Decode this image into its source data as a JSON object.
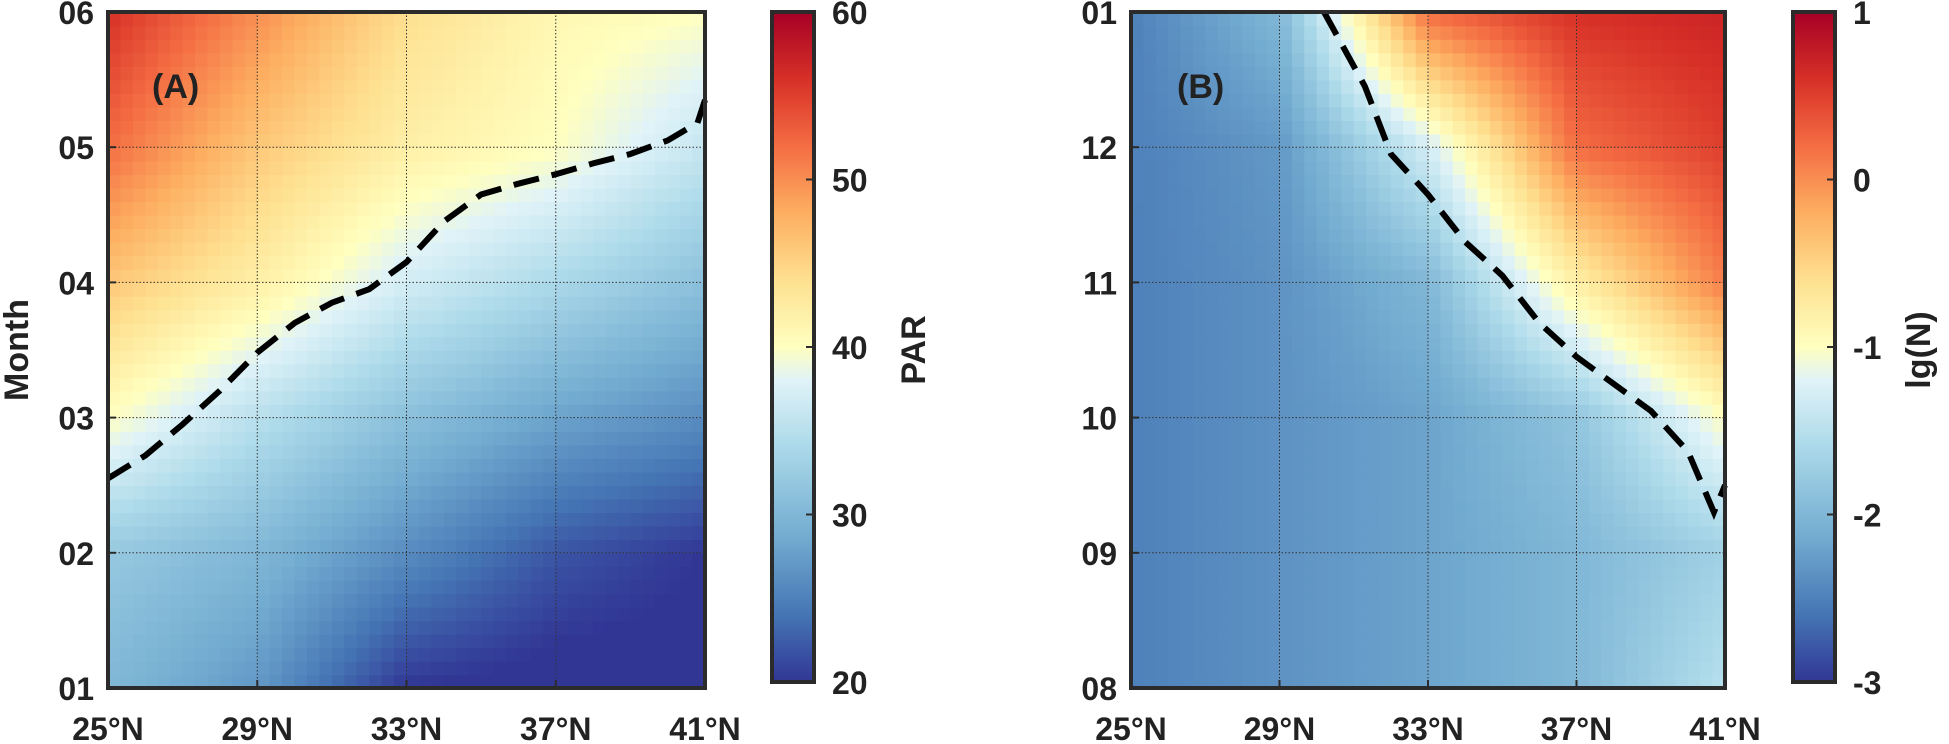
{
  "chart_data": [
    {
      "type": "heatmap",
      "panel_label": "(A)",
      "x_ticks": [
        "25°N",
        "29°N",
        "33°N",
        "37°N",
        "41°N"
      ],
      "y_ticks": [
        "01",
        "02",
        "03",
        "04",
        "05",
        "06"
      ],
      "ylabel": "Month",
      "xlim": [
        25,
        41
      ],
      "ylim": [
        0,
        5
      ],
      "grid": true,
      "colorbar": {
        "label": "PAR",
        "ticks": [
          "20",
          "30",
          "40",
          "50",
          "60"
        ],
        "range": [
          20,
          60
        ],
        "colormap": "red-yellow-blue"
      },
      "field_samples": {
        "x": [
          25,
          29,
          33,
          37,
          41
        ],
        "y": [
          0,
          1,
          2,
          3,
          4,
          5
        ],
        "z": [
          [
            30,
            27,
            20,
            19,
            19
          ],
          [
            32,
            30,
            26,
            22,
            20
          ],
          [
            40,
            35,
            31,
            28,
            26
          ],
          [
            46,
            42,
            37,
            34,
            31
          ],
          [
            52,
            46,
            42,
            40,
            36
          ],
          [
            56,
            50,
            44,
            41,
            40
          ]
        ]
      },
      "contour": {
        "level": 40,
        "style": "dashed",
        "color": "#000000",
        "x": [
          25,
          26,
          27,
          28,
          29,
          30,
          31,
          32,
          33,
          34,
          35,
          36,
          37,
          38,
          39,
          40,
          40.8,
          41
        ],
        "y": [
          1.55,
          1.72,
          1.95,
          2.2,
          2.48,
          2.7,
          2.85,
          2.95,
          3.15,
          3.45,
          3.65,
          3.73,
          3.8,
          3.88,
          3.95,
          4.05,
          4.18,
          4.35
        ]
      }
    },
    {
      "type": "heatmap",
      "panel_label": "(B)",
      "x_ticks": [
        "25°N",
        "29°N",
        "33°N",
        "37°N",
        "41°N"
      ],
      "y_ticks": [
        "08",
        "09",
        "10",
        "11",
        "12",
        "01"
      ],
      "ylabel": "",
      "xlim": [
        25,
        41
      ],
      "ylim": [
        0,
        5
      ],
      "grid": true,
      "colorbar": {
        "label": "lg(N)",
        "ticks": [
          "1",
          "0",
          "-1",
          "-2",
          "-3"
        ],
        "range": [
          -3,
          1
        ],
        "colormap": "red-yellow-blue"
      },
      "field_samples": {
        "x": [
          25,
          29,
          33,
          37,
          41
        ],
        "y": [
          0,
          1,
          2,
          3,
          4,
          5
        ],
        "z": [
          [
            -2.5,
            -2.35,
            -2.2,
            -2.0,
            -1.5
          ],
          [
            -2.5,
            -2.35,
            -2.2,
            -2.0,
            -1.7
          ],
          [
            -2.5,
            -2.35,
            -2.2,
            -1.85,
            -1.0
          ],
          [
            -2.5,
            -2.35,
            -2.0,
            -0.8,
            0.1
          ],
          [
            -2.5,
            -2.3,
            -1.3,
            0.2,
            0.5
          ],
          [
            -2.5,
            -2.0,
            0.2,
            0.6,
            0.7
          ]
        ]
      },
      "contour": {
        "level": -1,
        "style": "dashed",
        "color": "#000000",
        "x": [
          30.2,
          31.3,
          32.0,
          33.0,
          34.0,
          35.0,
          36.0,
          37.0,
          38.0,
          39.0,
          40.0,
          40.7,
          41.0
        ],
        "y": [
          5.0,
          4.45,
          3.95,
          3.65,
          3.3,
          3.05,
          2.7,
          2.45,
          2.25,
          2.05,
          1.75,
          1.3,
          1.5
        ]
      }
    }
  ]
}
